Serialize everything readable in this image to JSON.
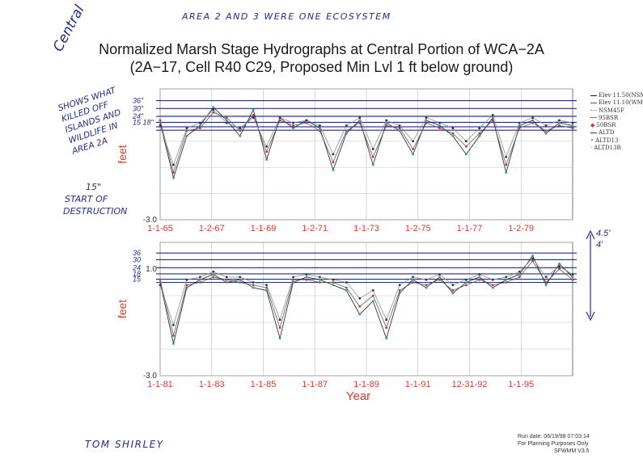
{
  "titles": {
    "line1": "Normalized Marsh Stage Hydrographs at Central Portion of WCA−2A",
    "line2": "(2A−17, Cell R40 C29, Proposed Min Lvl 1 ft below ground)"
  },
  "annotations": {
    "top_note": "AREA 2 AND 3 WERE ONE ECOSYSTEM",
    "central": "Central",
    "left_note": [
      "SHOWS WHAT",
      "KILLED OFF",
      "ISLANDS AND",
      "WILDLIFE IN",
      "AREA 2A"
    ],
    "start_note": [
      "15\"",
      "START OF",
      "DESTRUCTION"
    ],
    "author": "TOM SHIRLEY",
    "right_marks": [
      "4.5'",
      "4'"
    ],
    "top_inch_marks": [
      "36\"",
      "30\"",
      "24\"",
      "15 18\""
    ],
    "bottom_inch_marks": [
      "36",
      "30",
      "24",
      "18",
      "15"
    ]
  },
  "legend": [
    "Elev 11.50(NSM)",
    "Elev 11.10(WMD",
    "NSM45F",
    "95BSR",
    "50BSR",
    "ALTD",
    "ALTD13",
    "ALTD13R"
  ],
  "footer": {
    "run_date": "Run date: 06/19/98 07:03:14",
    "purpose": "For Planning Purposes Only",
    "model": "SFWMM V3.5"
  },
  "colors": {
    "ink": "#1f2e8a",
    "tick_red": "#d83a2a",
    "series": [
      "#111111",
      "#555555",
      "#8a8a8a",
      "#1fa39a",
      "#c0392b",
      "#333333",
      "#4a78c8",
      "#2e8b57"
    ]
  },
  "chart_data": [
    {
      "type": "line",
      "title": "",
      "ylabel": "feet",
      "xlabel": "",
      "ylim": [
        -3.0,
        2.0
      ],
      "y_min_label": "-3.0",
      "x_tick_labels": [
        "1-1-65",
        "1-2-67",
        "1-1-69",
        "1-2-71",
        "1-1-73",
        "1-2-75",
        "1-1-77",
        "1-2-79"
      ],
      "x": [
        1965,
        1965.5,
        1966,
        1966.5,
        1967,
        1967.5,
        1968,
        1968.5,
        1969,
        1969.5,
        1970,
        1970.5,
        1971,
        1971.5,
        1972,
        1972.5,
        1973,
        1973.5,
        1974,
        1974.5,
        1975,
        1975.5,
        1976,
        1976.5,
        1977,
        1977.5,
        1978,
        1978.5,
        1979,
        1979.5,
        1980,
        1980.5
      ],
      "series": [
        {
          "values": [
            0.7,
            -1.4,
            0.2,
            0.6,
            1.3,
            0.8,
            0.2,
            1.2,
            -0.7,
            0.9,
            0.5,
            0.8,
            0.5,
            -1.1,
            0.3,
            0.8,
            -0.9,
            0.7,
            0.4,
            -0.5,
            0.8,
            0.6,
            0.2,
            -0.5,
            0.2,
            0.9,
            -1.2,
            0.6,
            0.8,
            0.3,
            0.7,
            0.6
          ]
        },
        {
          "values": [
            0.8,
            -1.2,
            0.4,
            0.5,
            1.1,
            0.9,
            0.4,
            1.0,
            -0.4,
            0.8,
            0.6,
            0.7,
            0.4,
            -0.8,
            0.4,
            0.7,
            -0.6,
            0.6,
            0.5,
            -0.3,
            0.7,
            0.5,
            0.3,
            -0.2,
            0.3,
            0.8,
            -0.9,
            0.5,
            0.7,
            0.4,
            0.6,
            0.5
          ]
        },
        {
          "values": [
            0.6,
            -0.9,
            0.5,
            0.7,
            1.2,
            0.7,
            0.5,
            0.9,
            -0.2,
            0.9,
            0.7,
            0.8,
            0.6,
            -0.5,
            0.6,
            0.9,
            -0.3,
            0.8,
            0.6,
            0.0,
            0.9,
            0.7,
            0.5,
            0.0,
            0.5,
            1.0,
            -0.6,
            0.7,
            0.9,
            0.6,
            0.8,
            0.7
          ]
        }
      ],
      "reference_levels": [
        1.55,
        1.25,
        0.95,
        0.72,
        0.55,
        0.42
      ]
    },
    {
      "type": "line",
      "title": "",
      "ylabel": "feet",
      "xlabel": "Year",
      "ylim": [
        -3.0,
        2.0
      ],
      "y_min_label": "-3.0",
      "y_tick_labels": [
        "1.0"
      ],
      "x_tick_labels": [
        "1-1-81",
        "1-1-83",
        "1-1-85",
        "1-1-87",
        "1-1-89",
        "1-1-91",
        "12-31-92",
        "1-1-95"
      ],
      "x": [
        1981,
        1981.5,
        1982,
        1982.5,
        1983,
        1983.5,
        1984,
        1984.5,
        1985,
        1985.5,
        1986,
        1986.5,
        1987,
        1987.5,
        1988,
        1988.5,
        1989,
        1989.5,
        1990,
        1990.5,
        1991,
        1991.5,
        1992,
        1992.5,
        1993,
        1993.5,
        1994,
        1994.5,
        1995,
        1995.5,
        1996,
        1996.5
      ],
      "series": [
        {
          "values": [
            0.5,
            -1.8,
            0.3,
            0.6,
            0.8,
            0.5,
            0.6,
            0.3,
            0.2,
            -1.6,
            0.5,
            0.7,
            0.6,
            0.4,
            0.2,
            -0.7,
            -0.2,
            -1.6,
            0.1,
            0.6,
            0.3,
            0.7,
            0.1,
            0.5,
            0.7,
            0.3,
            0.6,
            0.8,
            1.5,
            0.4,
            1.2,
            0.7
          ]
        },
        {
          "values": [
            0.6,
            -1.5,
            0.4,
            0.5,
            0.7,
            0.6,
            0.5,
            0.4,
            0.3,
            -1.2,
            0.6,
            0.6,
            0.5,
            0.5,
            0.3,
            -0.4,
            0.0,
            -1.2,
            0.2,
            0.5,
            0.4,
            0.6,
            0.2,
            0.4,
            0.6,
            0.4,
            0.5,
            0.7,
            1.3,
            0.5,
            1.0,
            0.6
          ]
        },
        {
          "values": [
            0.4,
            -1.1,
            0.6,
            0.7,
            0.9,
            0.7,
            0.7,
            0.5,
            0.4,
            -0.9,
            0.7,
            0.8,
            0.7,
            0.6,
            0.5,
            -0.1,
            0.2,
            -0.9,
            0.4,
            0.7,
            0.6,
            0.8,
            0.4,
            0.6,
            0.8,
            0.6,
            0.7,
            0.9,
            1.4,
            0.7,
            1.1,
            0.8
          ]
        }
      ],
      "reference_levels": [
        1.6,
        1.35,
        1.05,
        0.82,
        0.62,
        0.5
      ]
    }
  ]
}
